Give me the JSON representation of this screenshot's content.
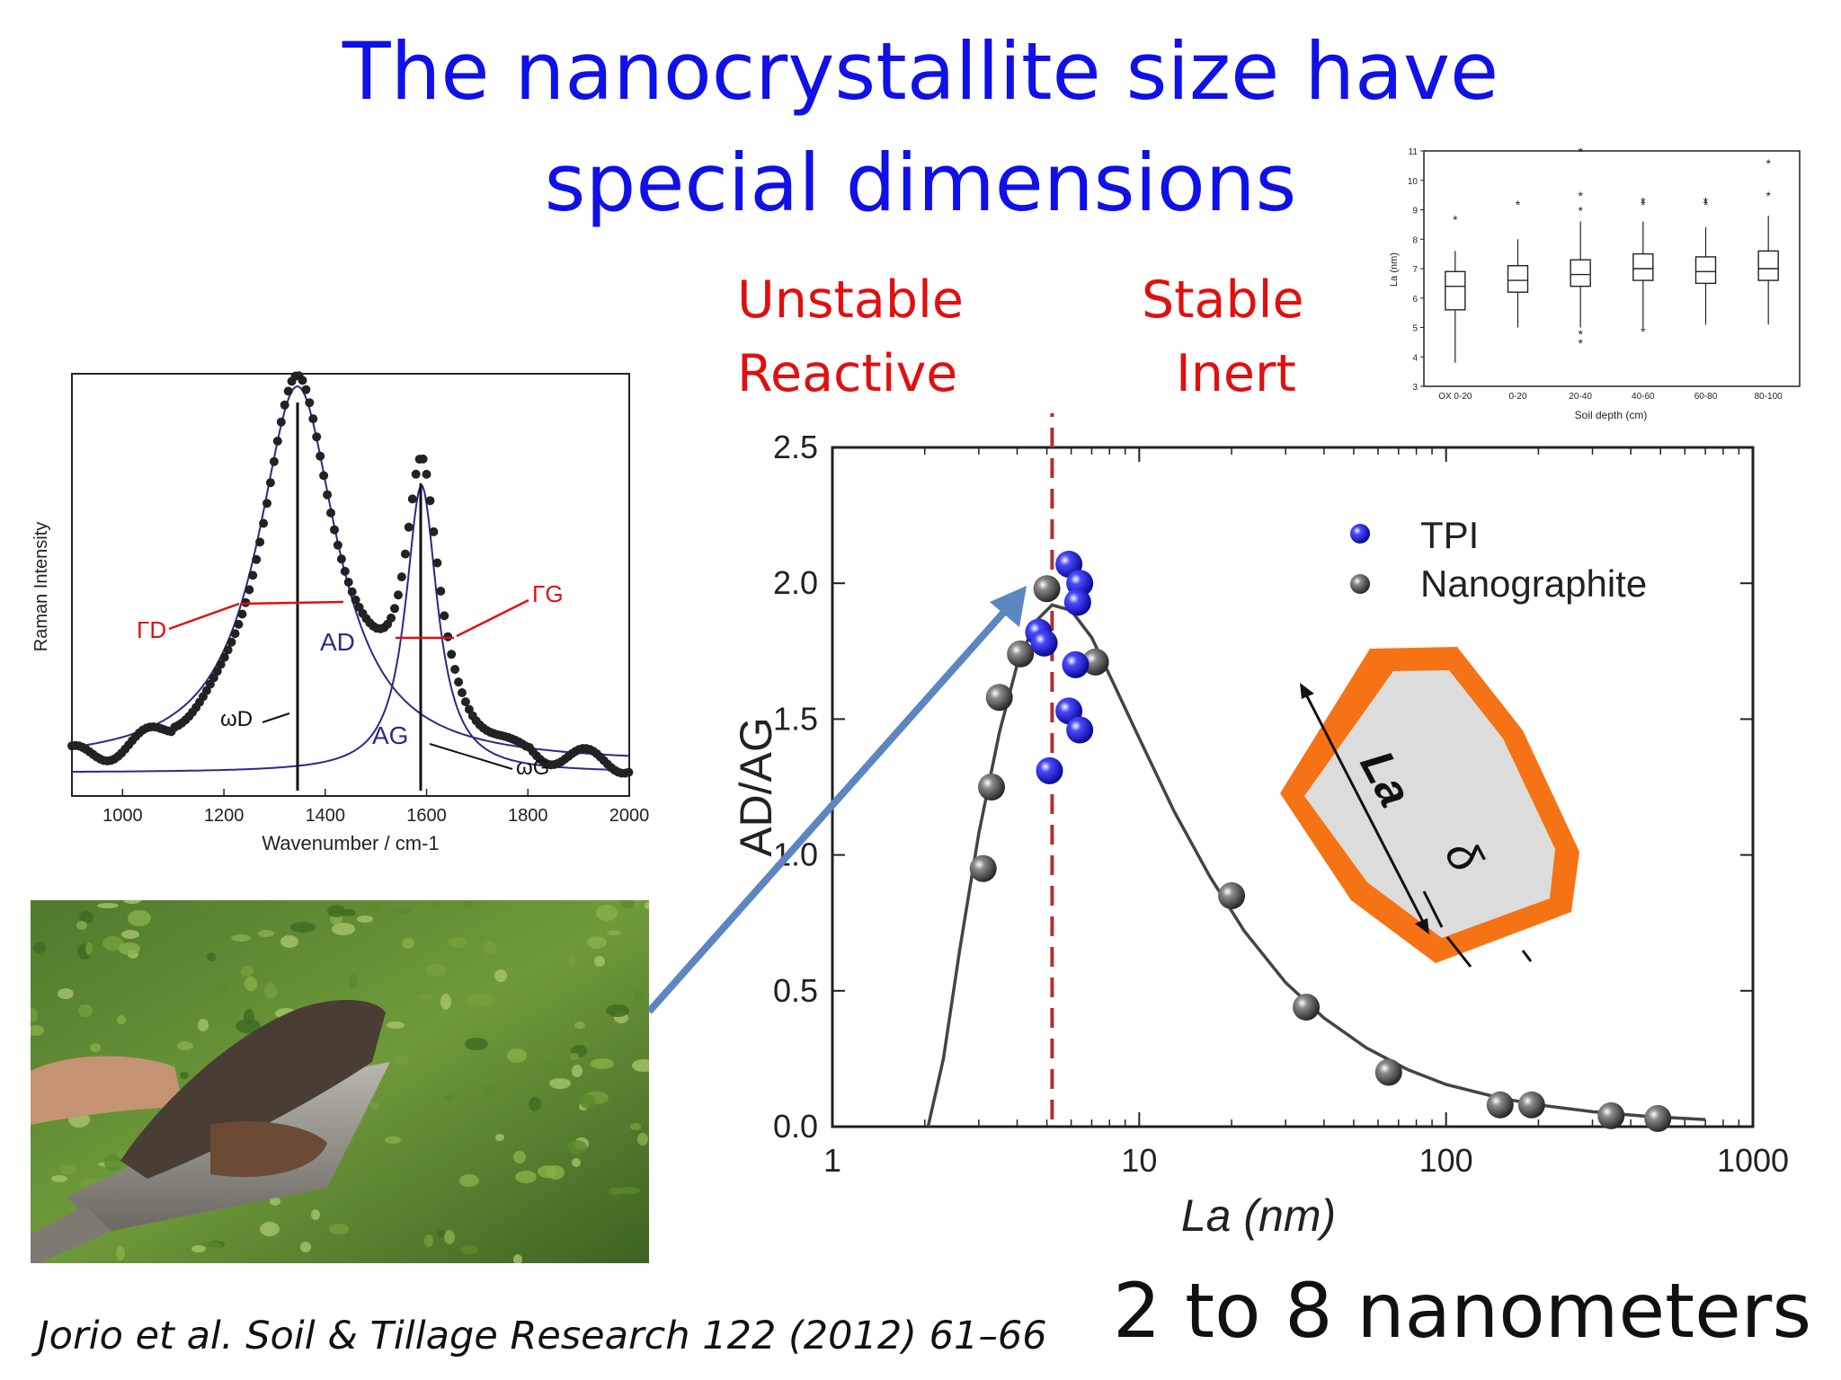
{
  "slide": {
    "title_line1": "The nanocrystallite size have",
    "title_line2": "special dimensions",
    "zone_left_line1": "Unstable",
    "zone_left_line2": "Reactive",
    "zone_right_line1": "Stable",
    "zone_right_line2": "Inert",
    "citation": "Jorio et al. Soil & Tillage Research 122 (2012) 61–66",
    "range_statement": "2 to 8 nanometers",
    "colors": {
      "title": "#1010e8",
      "zone_text": "#e01010",
      "divider": "#b03030",
      "arrow": "#5b86c0",
      "hexagon_border": "#f57314",
      "hexagon_fill": "#dcdcdc"
    }
  },
  "chart_data": [
    {
      "type": "scatter",
      "title": "",
      "xlabel": "La (nm)",
      "ylabel": "AD/AG",
      "xscale": "log",
      "xlim": [
        1,
        1000
      ],
      "ylim": [
        0,
        2.5
      ],
      "xticks": [
        "1",
        "10",
        "100",
        "1000"
      ],
      "yticks": [
        "0.0",
        "0.5",
        "1.0",
        "1.5",
        "2.0",
        "2.5"
      ],
      "divider_x": 5.2,
      "legend_position": "top-right",
      "series": [
        {
          "name": "TPI",
          "color": "#1a1ad8",
          "points": [
            [
              5.9,
              2.07
            ],
            [
              6.4,
              2.0
            ],
            [
              6.3,
              1.93
            ],
            [
              4.7,
              1.82
            ],
            [
              4.9,
              1.78
            ],
            [
              6.2,
              1.7
            ],
            [
              5.9,
              1.53
            ],
            [
              6.4,
              1.46
            ],
            [
              5.1,
              1.31
            ]
          ]
        },
        {
          "name": "Nanographite",
          "color": "#555555",
          "points": [
            [
              3.1,
              0.95
            ],
            [
              3.3,
              1.25
            ],
            [
              3.5,
              1.58
            ],
            [
              4.1,
              1.74
            ],
            [
              5.0,
              1.98
            ],
            [
              7.2,
              1.71
            ],
            [
              20,
              0.85
            ],
            [
              35,
              0.44
            ],
            [
              65,
              0.2
            ],
            [
              150,
              0.08
            ],
            [
              190,
              0.08
            ],
            [
              345,
              0.04
            ],
            [
              490,
              0.03
            ]
          ]
        }
      ],
      "fit_curve": [
        [
          2.05,
          0
        ],
        [
          2.3,
          0.25
        ],
        [
          2.6,
          0.65
        ],
        [
          3.0,
          1.08
        ],
        [
          3.5,
          1.45
        ],
        [
          4.0,
          1.7
        ],
        [
          4.6,
          1.86
        ],
        [
          5.2,
          1.92
        ],
        [
          6.0,
          1.9
        ],
        [
          7.0,
          1.8
        ],
        [
          8.5,
          1.6
        ],
        [
          10,
          1.43
        ],
        [
          13,
          1.16
        ],
        [
          17,
          0.92
        ],
        [
          22,
          0.72
        ],
        [
          30,
          0.53
        ],
        [
          40,
          0.4
        ],
        [
          55,
          0.29
        ],
        [
          75,
          0.21
        ],
        [
          100,
          0.155
        ],
        [
          150,
          0.105
        ],
        [
          200,
          0.08
        ],
        [
          300,
          0.055
        ],
        [
          450,
          0.038
        ],
        [
          700,
          0.026
        ]
      ],
      "annotations": {
        "hexagon_size_label": "La",
        "hexagon_edge_label": "δ"
      }
    },
    {
      "type": "line",
      "title": "",
      "xlabel": "Wavenumber / cm-1",
      "ylabel": "Raman Intensity",
      "xlim": [
        900,
        2000
      ],
      "xticks": [
        "1000",
        "1200",
        "1400",
        "1600",
        "1800",
        "2000"
      ],
      "peak_labels": [
        "ΓD",
        "ΓG",
        "AD",
        "AG",
        "ωD",
        "ωG"
      ],
      "peaks": [
        {
          "name": "D",
          "center": 1345
        },
        {
          "name": "G",
          "center": 1590
        }
      ]
    },
    {
      "type": "box",
      "title": "",
      "xlabel": "Soil depth (cm)",
      "ylabel": "La (nm)",
      "ylim": [
        3,
        11
      ],
      "yticks": [
        "3",
        "4",
        "5",
        "6",
        "7",
        "8",
        "9",
        "10",
        "11"
      ],
      "categories": [
        "OX 0-20",
        "0-20",
        "20-40",
        "40-60",
        "60-80",
        "80-100"
      ],
      "boxes": [
        {
          "min": 3.8,
          "q1": 5.6,
          "median": 6.4,
          "q3": 6.9,
          "max": 7.6,
          "outliers": [
            8.7
          ]
        },
        {
          "min": 5.0,
          "q1": 6.2,
          "median": 6.6,
          "q3": 7.1,
          "max": 8.0,
          "outliers": [
            9.2
          ]
        },
        {
          "min": 5.0,
          "q1": 6.4,
          "median": 6.8,
          "q3": 7.3,
          "max": 8.6,
          "outliers": [
            4.5,
            4.8,
            9.0,
            9.5,
            11.0
          ]
        },
        {
          "min": 5.0,
          "q1": 6.6,
          "median": 7.0,
          "q3": 7.5,
          "max": 8.6,
          "outliers": [
            4.9,
            9.2,
            9.3
          ]
        },
        {
          "min": 5.1,
          "q1": 6.5,
          "median": 6.9,
          "q3": 7.4,
          "max": 8.4,
          "outliers": [
            9.2,
            9.3
          ]
        },
        {
          "min": 5.1,
          "q1": 6.6,
          "median": 7.0,
          "q3": 7.6,
          "max": 8.8,
          "outliers": [
            9.5,
            10.6
          ]
        }
      ]
    }
  ]
}
